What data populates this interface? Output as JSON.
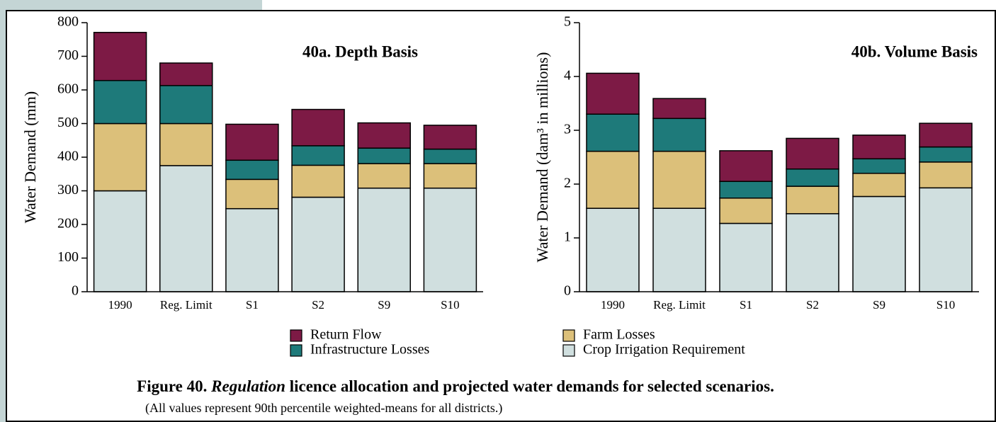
{
  "chart_data": [
    {
      "type": "stacked_bar",
      "title": "40a. Depth Basis",
      "y_label": "Water Demand (mm)",
      "categories": [
        "1990",
        "Reg. Limit",
        "S1",
        "S2",
        "S9",
        "S10"
      ],
      "series": [
        {
          "name": "Crop Irrigation Requirement",
          "color": "#d0dfdf",
          "values": [
            300,
            375,
            247,
            281,
            308,
            308
          ]
        },
        {
          "name": "Farm Losses",
          "color": "#dcc07a",
          "values": [
            200,
            125,
            87,
            95,
            73,
            73
          ]
        },
        {
          "name": "Infrastructure Losses",
          "color": "#1e7a7a",
          "values": [
            128,
            113,
            57,
            58,
            46,
            43
          ]
        },
        {
          "name": "Return Flow",
          "color": "#7d1a45",
          "values": [
            143,
            67,
            107,
            108,
            75,
            71
          ]
        }
      ],
      "ylim": [
        0,
        800
      ],
      "yticks": [
        0,
        100,
        200,
        300,
        400,
        500,
        600,
        700,
        800
      ]
    },
    {
      "type": "stacked_bar",
      "title": "40b. Volume Basis",
      "y_label": "Water Demand (dam³ in millions)",
      "categories": [
        "1990",
        "Reg. Limit",
        "S1",
        "S2",
        "S9",
        "S10"
      ],
      "series": [
        {
          "color": "#d0dfdf",
          "values": [
            1.55,
            1.55,
            1.27,
            1.45,
            1.77,
            1.93
          ]
        },
        {
          "color": "#dcc07a",
          "values": [
            1.06,
            1.06,
            0.47,
            0.51,
            0.43,
            0.48
          ]
        },
        {
          "color": "#1e7a7a",
          "values": [
            0.69,
            0.61,
            0.31,
            0.32,
            0.27,
            0.28
          ]
        },
        {
          "color": "#7d1a45",
          "values": [
            0.76,
            0.37,
            0.57,
            0.57,
            0.44,
            0.44
          ]
        }
      ],
      "ylim": [
        0,
        5
      ],
      "yticks": [
        0,
        1,
        2,
        3,
        4,
        5
      ]
    }
  ],
  "caption": {
    "label": "Figure 40.",
    "emphasis": "Regulation",
    "text": "licence allocation and projected water demands for selected scenarios.",
    "note": "(All values represent 90th percentile weighted-means for all districts.)"
  }
}
